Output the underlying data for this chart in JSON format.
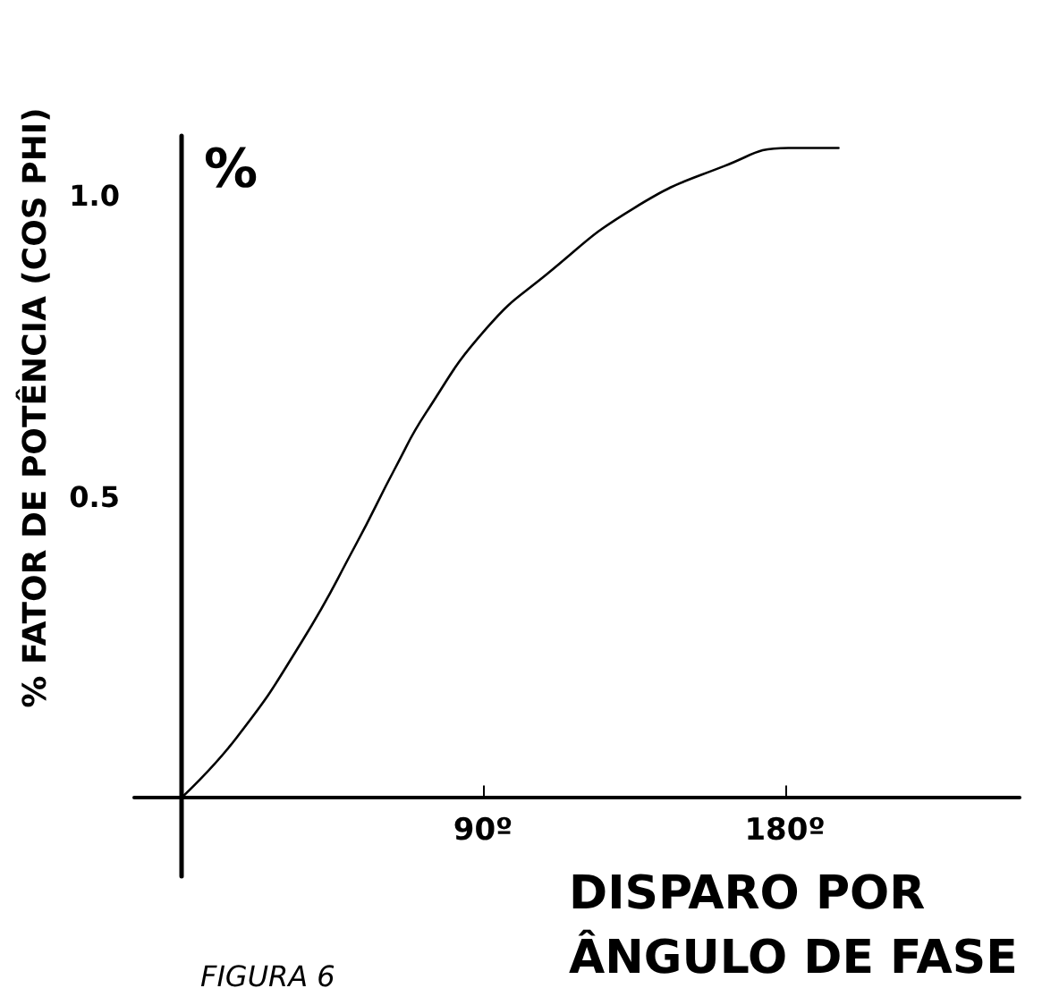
{
  "chart_data": {
    "type": "line",
    "xlabel": "DISPARO POR\nÂNGULO DE FASE",
    "ylabel": "% FATOR DE POTÊNCIA (COS PHI)",
    "annotations": [
      "%",
      "FIGURA 6"
    ],
    "x": [
      0,
      16.5,
      36,
      52,
      64,
      73,
      91,
      109,
      135,
      162,
      181,
      196
    ],
    "series": [
      {
        "color": "#000000",
        "values": [
          0,
          0.1,
          0.26,
          0.42,
          0.55,
          0.64,
          0.78,
          0.87,
          0.98,
          1.05,
          1.08,
          1.08
        ]
      }
    ],
    "xlim": [
      -14,
      250
    ],
    "ylim": [
      -0.13,
      1.1
    ],
    "xticks": [
      {
        "value": 90,
        "label": "90º"
      },
      {
        "value": 180,
        "label": "180º"
      }
    ],
    "yticks": [
      0.5,
      {
        "value": 1,
        "label": "1.0"
      }
    ],
    "grid": false,
    "marker": "none",
    "line_style": "solid"
  }
}
